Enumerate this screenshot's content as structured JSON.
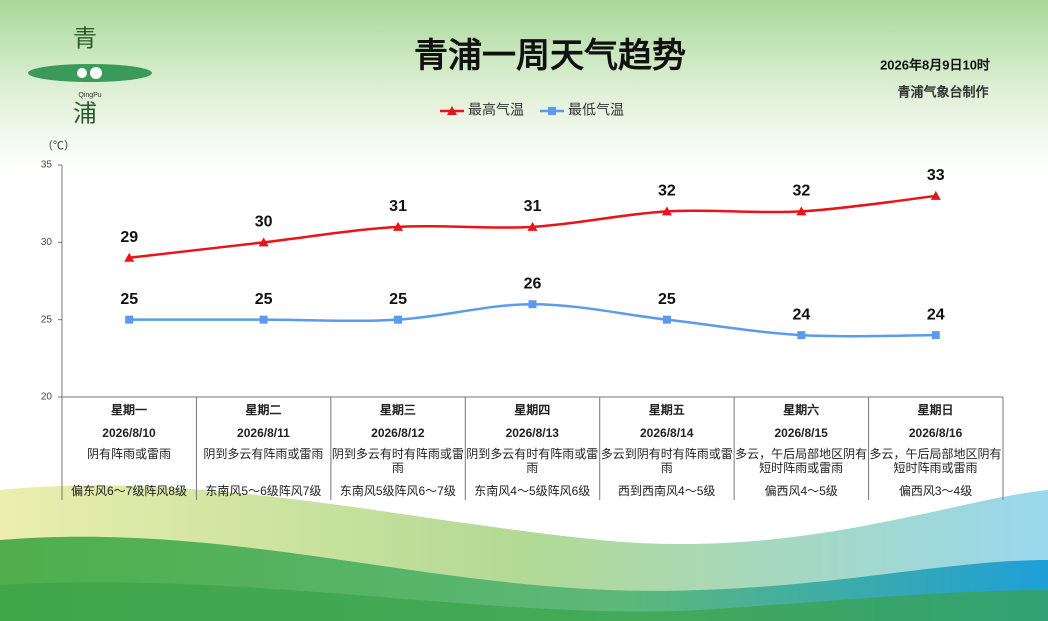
{
  "logo": {
    "top": "青",
    "pinyin": "QingPu",
    "bottom": "浦"
  },
  "chart_data": {
    "type": "line",
    "title": "青浦一周天气趋势",
    "issue_time": "2026年8月9日10时",
    "credit": "青浦气象台制作",
    "y_label": "（℃）",
    "categories": [
      "星期一",
      "星期二",
      "星期三",
      "星期四",
      "星期五",
      "星期六",
      "星期日"
    ],
    "dates": [
      "2026/8/10",
      "2026/8/11",
      "2026/8/12",
      "2026/8/13",
      "2026/8/14",
      "2026/8/15",
      "2026/8/16"
    ],
    "weather": [
      "阴有阵雨或雷雨",
      "阴到多云有阵雨或雷雨",
      "阴到多云有时有阵雨或雷雨",
      "阴到多云有时有阵雨或雷雨",
      "多云到阴有时有阵雨或雷雨",
      "多云，午后局部地区阴有短时阵雨或雷雨",
      "多云，午后局部地区阴有短时阵雨或雷雨"
    ],
    "wind": [
      "偏东风6～7级阵风8级",
      "东南风5～6级阵风7级",
      "东南风5级阵风6～7级",
      "东南风4～5级阵风6级",
      "西到西南风4～5级",
      "偏西风4～5级",
      "偏西风3～4级"
    ],
    "series": [
      {
        "name": "最高气温",
        "color": "#e8141b",
        "marker": "triangle",
        "values": [
          29,
          30,
          31,
          31,
          32,
          32,
          33
        ]
      },
      {
        "name": "最低气温",
        "color": "#5b9bef",
        "marker": "square",
        "values": [
          25,
          25,
          25,
          26,
          25,
          24,
          24
        ]
      }
    ],
    "ylim": [
      20,
      35
    ],
    "yticks": [
      20,
      25,
      30,
      35
    ]
  }
}
